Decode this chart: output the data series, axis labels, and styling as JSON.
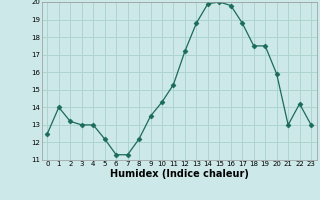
{
  "x": [
    0,
    1,
    2,
    3,
    4,
    5,
    6,
    7,
    8,
    9,
    10,
    11,
    12,
    13,
    14,
    15,
    16,
    17,
    18,
    19,
    20,
    21,
    22,
    23
  ],
  "y": [
    12.5,
    14.0,
    13.2,
    13.0,
    13.0,
    12.2,
    11.3,
    11.3,
    12.2,
    13.5,
    14.3,
    15.3,
    17.2,
    18.8,
    19.9,
    20.0,
    19.8,
    18.8,
    17.5,
    17.5,
    15.9,
    13.0,
    14.2,
    13.0
  ],
  "xlabel": "Humidex (Indice chaleur)",
  "ylim": [
    11,
    20
  ],
  "xlim": [
    -0.5,
    23.5
  ],
  "yticks": [
    11,
    12,
    13,
    14,
    15,
    16,
    17,
    18,
    19,
    20
  ],
  "xticks": [
    0,
    1,
    2,
    3,
    4,
    5,
    6,
    7,
    8,
    9,
    10,
    11,
    12,
    13,
    14,
    15,
    16,
    17,
    18,
    19,
    20,
    21,
    22,
    23
  ],
  "line_color": "#1a6b5a",
  "marker": "D",
  "marker_size": 2.5,
  "bg_color": "#cce8e8",
  "grid_color": "#aed4d0",
  "xlabel_fontsize": 7,
  "tick_fontsize": 5
}
